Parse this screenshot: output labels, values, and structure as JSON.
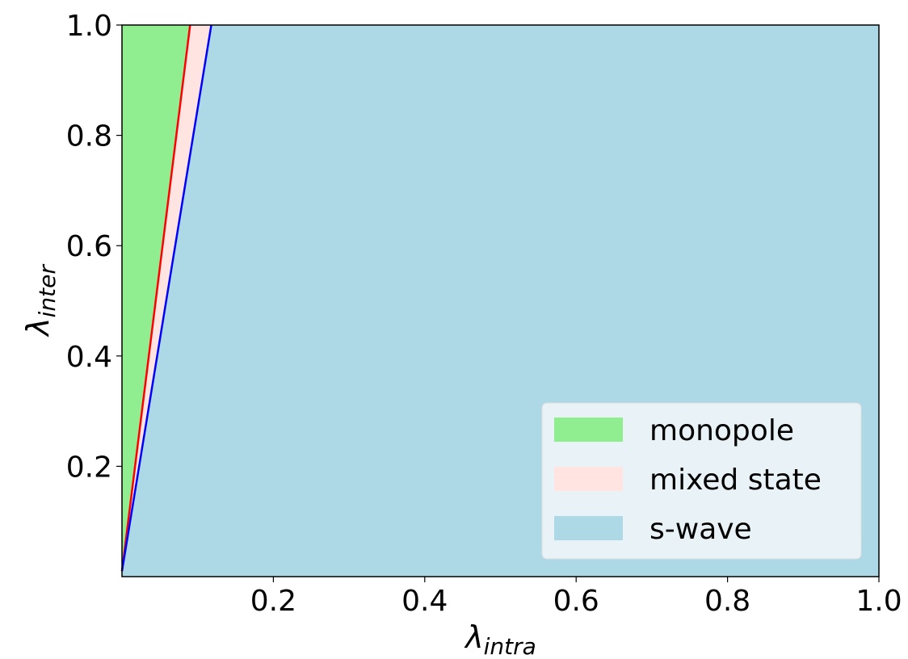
{
  "chart_data": {
    "type": "area",
    "title": "",
    "xlabel": "λ_intra",
    "ylabel": "λ_inter",
    "xlabel_main": "λ",
    "xlabel_sub": "intra",
    "ylabel_main": "λ",
    "ylabel_sub": "inter",
    "xlim": [
      0,
      1
    ],
    "ylim": [
      0,
      1
    ],
    "xticks": [
      0.2,
      0.4,
      0.6,
      0.8,
      1.0
    ],
    "xtick_labels": [
      "0.2",
      "0.4",
      "0.6",
      "0.8",
      "1.0"
    ],
    "yticks": [
      0.2,
      0.4,
      0.6,
      0.8,
      1.0
    ],
    "ytick_labels": [
      "0.2",
      "0.4",
      "0.6",
      "0.8",
      "1.0"
    ],
    "grid": false,
    "boundaries": [
      {
        "name": "monopole/mixed boundary",
        "color": "#ff0000",
        "x": [
          0.0,
          0.09
        ],
        "y": [
          0.01,
          1.0
        ]
      },
      {
        "name": "mixed/s-wave boundary",
        "color": "#0000ff",
        "x": [
          0.0,
          0.118
        ],
        "y": [
          0.01,
          1.0
        ]
      }
    ],
    "regions": [
      {
        "name": "monopole",
        "color": "#90ee90"
      },
      {
        "name": "mixed state",
        "color": "#ffe4e1"
      },
      {
        "name": "s-wave",
        "color": "#add8e6"
      }
    ],
    "legend": {
      "placement": "lower-right",
      "entries": [
        "monopole",
        "mixed state",
        "s-wave"
      ]
    }
  }
}
